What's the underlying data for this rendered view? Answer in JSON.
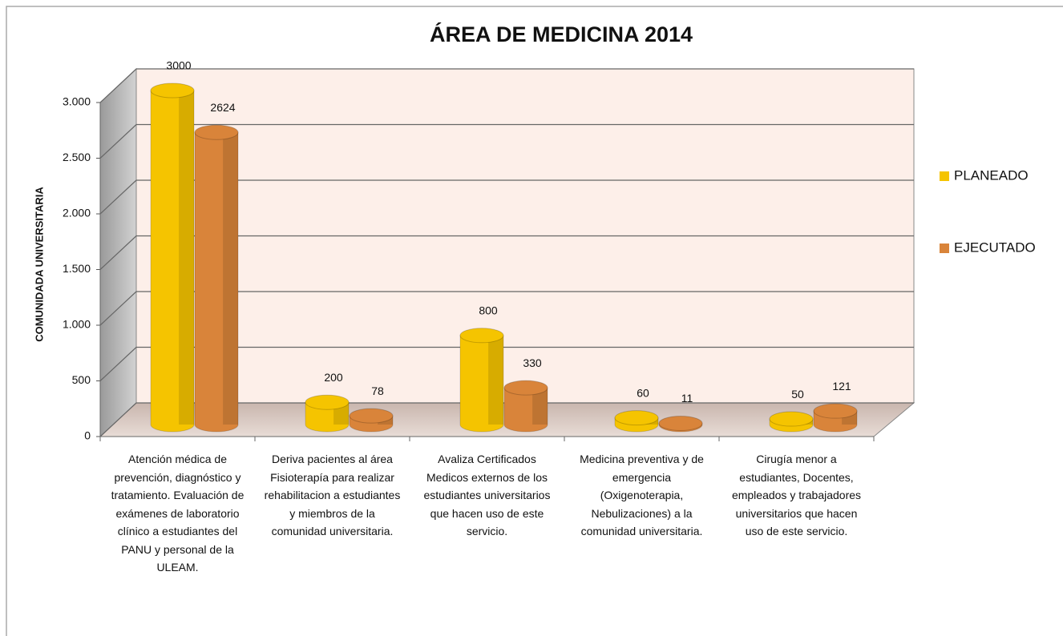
{
  "chart_data": {
    "type": "bar3d",
    "title": "ÁREA DE MEDICINA 2014",
    "y_label": "COMUNIDADA UNIVERSITARIA",
    "categories": [
      "Atención médica de prevención, diagnóstico y tratamiento. Evaluación de exámenes de laboratorio clínico a estudiantes del PANU y personal de la ULEAM.",
      "Deriva pacientes al área Fisioterapía para realizar rehabilitacion a estudiantes y miembros de la comunidad universitaria.",
      "Avaliza Certificados Medicos externos de los estudiantes universitarios que hacen uso de este servicio.",
      "Medicina preventiva y de emergencia (Oxigenoterapia, Nebulizaciones) a la comunidad universitaria.",
      "Cirugía menor a estudiantes, Docentes, empleados y trabajadores universitarios que hacen uso de este servicio."
    ],
    "series": [
      {
        "name": "PLANEADO",
        "color": "#f5c400",
        "values": [
          3000,
          200,
          800,
          60,
          50
        ]
      },
      {
        "name": "EJECUTADO",
        "color": "#d9843a",
        "values": [
          2624,
          78,
          330,
          11,
          121
        ]
      }
    ],
    "ylim": [
      0,
      3000
    ],
    "yticks": [
      0,
      500,
      {
        "value": 1000,
        "label": "1.000"
      },
      {
        "value": 1500,
        "label": "1.500"
      },
      {
        "value": 2000,
        "label": "2.000"
      },
      {
        "value": 2500,
        "label": "2.500"
      },
      {
        "value": 3000,
        "label": "3.000"
      }
    ],
    "grid": true,
    "legend": "right"
  }
}
